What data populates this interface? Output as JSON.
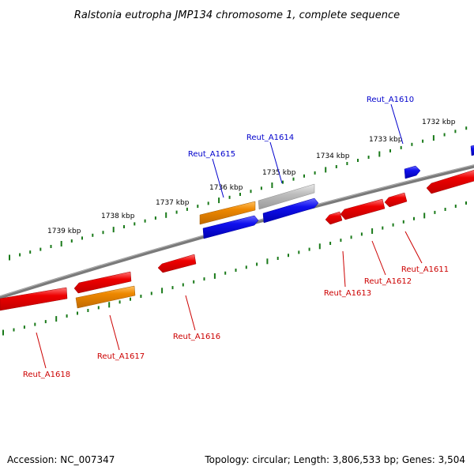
{
  "title": "Ralstonia eutropha JMP134 chromosome 1, complete sequence",
  "accession": "Accession: NC_007347",
  "topology": "Topology: circular; Length: 3,806,533 bp; Genes: 3,504",
  "colors": {
    "backbone": "#808080",
    "forward_label": "#0000cc",
    "reverse_label": "#cc0000",
    "tick": "#1a7a1a",
    "blue": "#1010ee",
    "red": "#ee0000",
    "orange": "#ee8800",
    "gray": "#b8b8b8"
  },
  "tick_labels": [
    "1739 kbp",
    "1738 kbp",
    "1737 kbp",
    "1736 kbp",
    "1735 kbp",
    "1734 kbp",
    "1733 kbp",
    "1732 kbp"
  ],
  "gene_labels": {
    "forward": [
      "Reut_A1615",
      "Reut_A1614",
      "Reut_A1610"
    ],
    "reverse": [
      "Reut_A1618",
      "Reut_A1617",
      "Reut_A1616",
      "Reut_A1613",
      "Reut_A1612",
      "Reut_A1611"
    ]
  }
}
